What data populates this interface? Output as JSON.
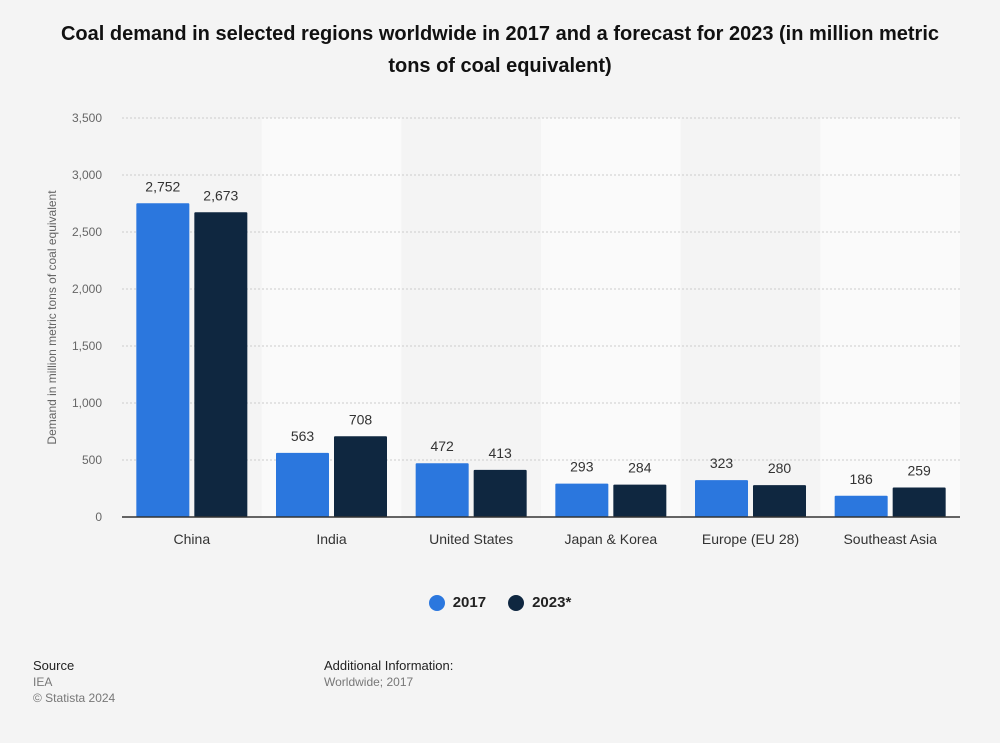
{
  "title": "Coal demand in selected regions worldwide in 2017 and a forecast for 2023 (in million metric tons of coal equivalent)",
  "colors": {
    "series_2017": "#2b77de",
    "series_2023": "#0f2740",
    "band": "#fafafa",
    "grid": "#cccccc"
  },
  "chart_data": {
    "type": "bar",
    "categories": [
      "China",
      "India",
      "United States",
      "Japan & Korea",
      "Europe (EU 28)",
      "Southeast Asia"
    ],
    "series": [
      {
        "name": "2017",
        "values": [
          2752,
          563,
          472,
          293,
          323,
          186
        ],
        "labels": [
          "2,752",
          "563",
          "472",
          "293",
          "323",
          "186"
        ]
      },
      {
        "name": "2023*",
        "values": [
          2673,
          708,
          413,
          284,
          280,
          259
        ],
        "labels": [
          "2,673",
          "708",
          "413",
          "284",
          "280",
          "259"
        ]
      }
    ],
    "ylabel": "Demand in million metric tons of coal equivalent",
    "ylim": [
      0,
      3500
    ],
    "yticks": [
      0,
      500,
      1000,
      1500,
      2000,
      2500,
      3000,
      3500
    ],
    "ytick_labels": [
      "0",
      "500",
      "1,000",
      "1,500",
      "2,000",
      "2,500",
      "3,000",
      "3,500"
    ],
    "grid": true,
    "legend_position": "bottom-center"
  },
  "legend": {
    "item1": "2017",
    "item2": "2023*"
  },
  "footer": {
    "source_heading": "Source",
    "source_name": "IEA",
    "copyright": "© Statista 2024",
    "info_heading": "Additional Information:",
    "info_text": "Worldwide; 2017"
  }
}
